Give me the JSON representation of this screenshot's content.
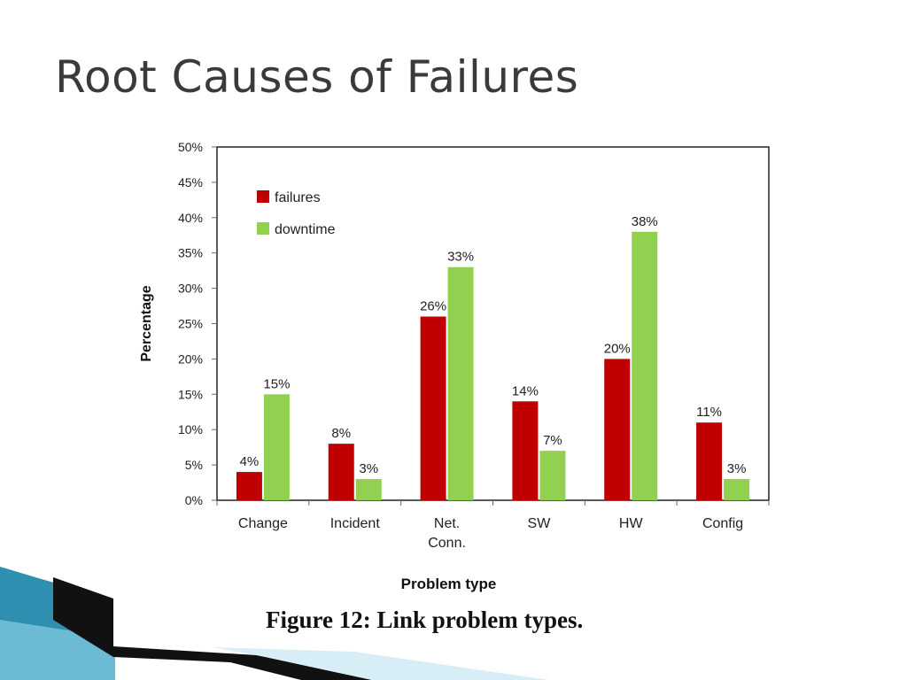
{
  "slide": {
    "title": "Root Causes of Failures"
  },
  "figure": {
    "caption": "Figure 12: Link problem types."
  },
  "colors": {
    "failures": "#c00000",
    "downtime": "#92d050",
    "title": "#3a3a3a",
    "deco_teal": "#2e8fb0",
    "deco_black": "#111111"
  },
  "chart_data": {
    "type": "bar",
    "title": "",
    "xlabel": "Problem type",
    "ylabel": "Percentage",
    "categories": [
      [
        "Change"
      ],
      [
        "Incident"
      ],
      [
        "Net.",
        "Conn."
      ],
      [
        "SW"
      ],
      [
        "HW"
      ],
      [
        "Config"
      ]
    ],
    "series": [
      {
        "name": "failures",
        "values": [
          4,
          8,
          26,
          14,
          20,
          11
        ],
        "data_labels": [
          "4%",
          "8%",
          "26%",
          "14%",
          "20%",
          "11%"
        ]
      },
      {
        "name": "downtime",
        "values": [
          15,
          3,
          33,
          7,
          38,
          3
        ],
        "data_labels": [
          "15%",
          "3%",
          "33%",
          "7%",
          "38%",
          "3%"
        ]
      }
    ],
    "ylim": [
      0,
      50
    ],
    "ytick_labels": [
      "0%",
      "5%",
      "10%",
      "15%",
      "20%",
      "25%",
      "30%",
      "35%",
      "40%",
      "45%",
      "50%"
    ],
    "grid": false,
    "legend_position": "top-left"
  }
}
